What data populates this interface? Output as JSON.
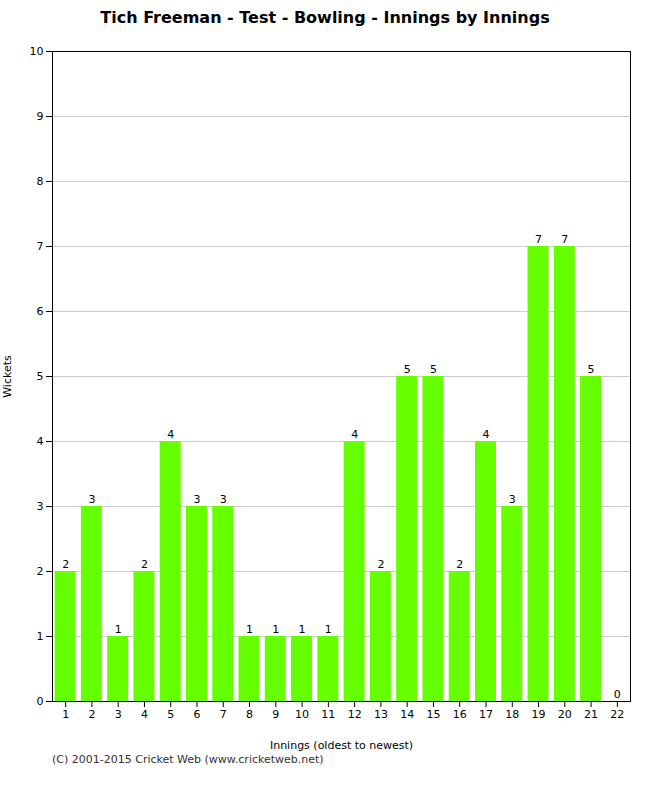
{
  "chart_data": {
    "type": "bar",
    "title": "Tich Freeman - Test - Bowling - Innings by Innings",
    "xlabel": "Innings (oldest to newest)",
    "ylabel": "Wickets",
    "annotations": [
      "(C) 2001-2015 Cricket Web (www.cricketweb.net)"
    ],
    "x": [
      1,
      2,
      3,
      4,
      5,
      6,
      7,
      8,
      9,
      10,
      11,
      12,
      13,
      14,
      15,
      16,
      17,
      18,
      19,
      20,
      21,
      22
    ],
    "values": [
      2,
      3,
      1,
      2,
      4,
      3,
      3,
      1,
      1,
      1,
      1,
      4,
      2,
      5,
      5,
      2,
      4,
      3,
      7,
      7,
      5,
      0
    ],
    "color": "#66ff00",
    "xlim": [
      0.5,
      22.5
    ],
    "xticks": [
      1,
      2,
      3,
      4,
      5,
      6,
      7,
      8,
      9,
      10,
      11,
      12,
      13,
      14,
      15,
      16,
      17,
      18,
      19,
      20,
      21,
      22
    ],
    "ylim": [
      0,
      10
    ],
    "yticks": [
      0,
      1,
      2,
      3,
      4,
      5,
      6,
      7,
      8,
      9,
      10
    ],
    "grid": true,
    "data_labels": true
  }
}
